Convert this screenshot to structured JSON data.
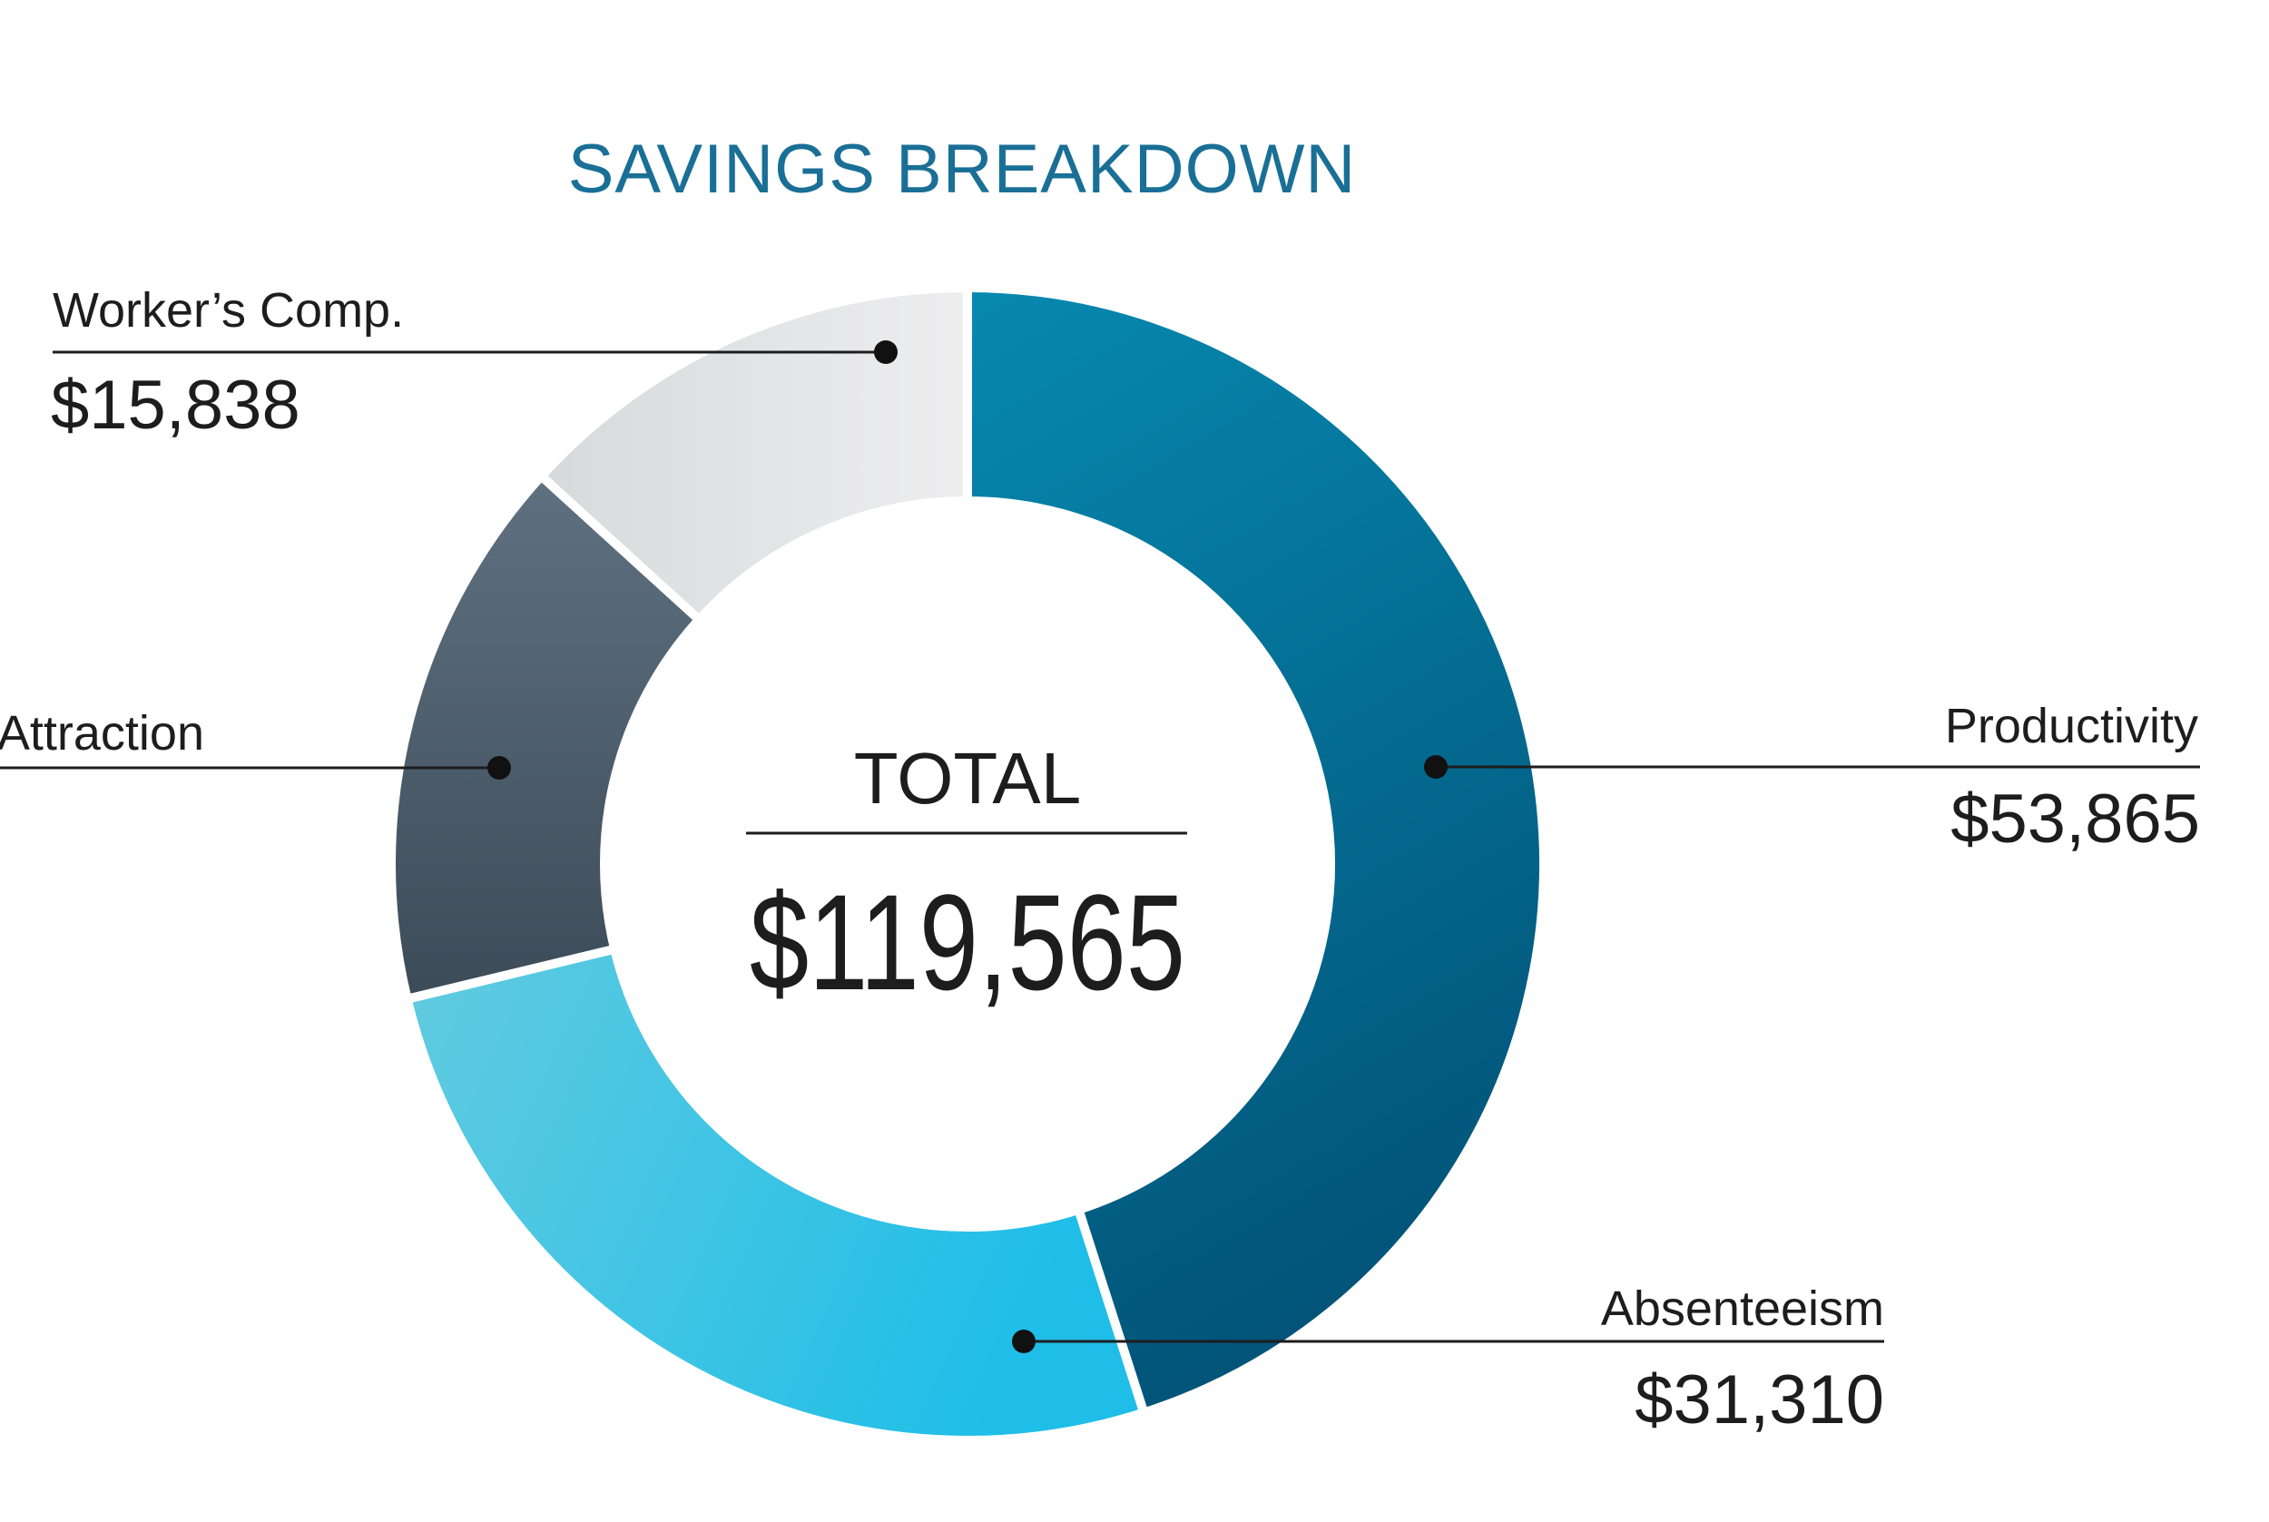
{
  "chart_data": {
    "type": "pie",
    "variant": "donut",
    "title": "SAVINGS BREAKDOWN",
    "center_label": "TOTAL",
    "center_value": "$119,565",
    "slices": [
      {
        "name": "Productivity",
        "value": 53865,
        "label": "$53,865",
        "color_start": "#0789b0",
        "color_end": "#025479"
      },
      {
        "name": "Absenteeism",
        "value": 31310,
        "label": "$31,310",
        "color_start": "#62cbe0",
        "color_end": "#1ebee8"
      },
      {
        "name": "Attraction",
        "value": 18552,
        "label": "",
        "color_start": "#5f7180",
        "color_end": "#3c4b58"
      },
      {
        "name": "Worker’s Comp.",
        "value": 15838,
        "label": "$15,838",
        "color_start": "#d7d9db",
        "color_end": "#eeeeef"
      }
    ]
  }
}
